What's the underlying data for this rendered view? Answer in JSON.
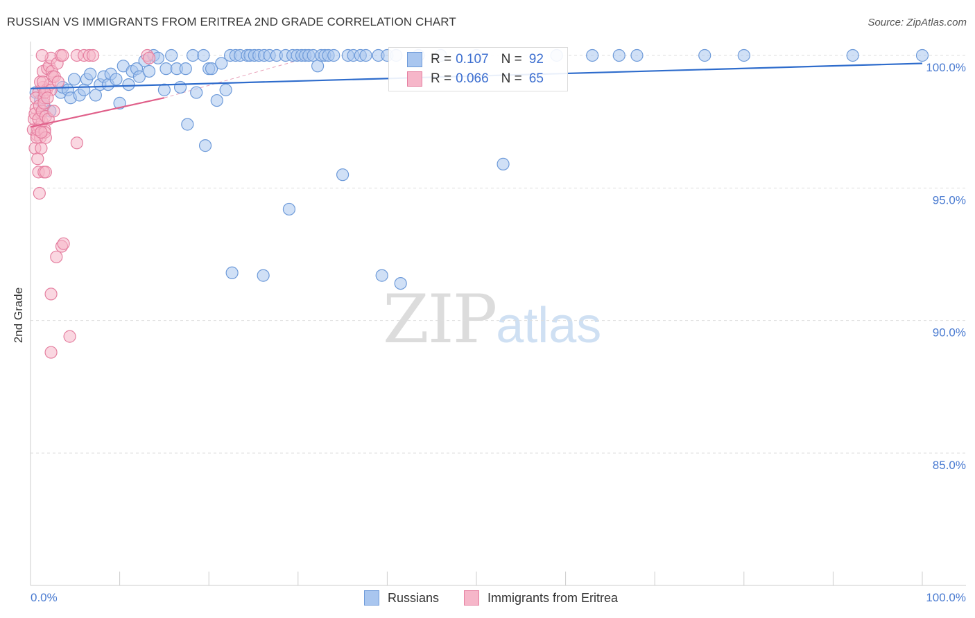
{
  "title": "RUSSIAN VS IMMIGRANTS FROM ERITREA 2ND GRADE CORRELATION CHART",
  "source": "Source: ZipAtlas.com",
  "watermark": {
    "zip": "ZIP",
    "atlas": "atlas"
  },
  "colors": {
    "russians_fill": "#a9c6ef",
    "russians_stroke": "#6d9ad9",
    "russians_line": "#2e6ccc",
    "eritrea_fill": "#f6b6c9",
    "eritrea_stroke": "#e57fa0",
    "eritrea_line": "#e0608a",
    "axis_text": "#4a7bd1",
    "grid": "#dddddd"
  },
  "legend": {
    "russians": {
      "r_label": "R =",
      "r_value": "0.107",
      "n_label": "N =",
      "n_value": "92"
    },
    "eritrea": {
      "r_label": "R =",
      "r_value": "0.066",
      "n_label": "N =",
      "n_value": "65"
    }
  },
  "chart_data": {
    "type": "scatter",
    "title": "RUSSIAN VS IMMIGRANTS FROM ERITREA 2ND GRADE CORRELATION CHART",
    "xlabel": "",
    "ylabel": "2nd Grade",
    "xlim": [
      0,
      100
    ],
    "ylim": [
      80.4,
      100.7
    ],
    "x_tick_labels": [
      "0.0%",
      "100.0%"
    ],
    "y_ticks": [
      100,
      95,
      90,
      85
    ],
    "y_tick_labels": [
      "100.0%",
      "95.0%",
      "90.0%",
      "85.0%"
    ],
    "grid": "horizontal dashed",
    "legend_position": "top-center",
    "series": [
      {
        "name": "Russians",
        "trend": [
          [
            0,
            98.75
          ],
          [
            100,
            99.7
          ]
        ],
        "points": [
          [
            0.6,
            98.6
          ],
          [
            1.1,
            98.3
          ],
          [
            1.5,
            98.1
          ],
          [
            2.2,
            97.9
          ],
          [
            3.4,
            98.6
          ],
          [
            3.6,
            98.8
          ],
          [
            4.2,
            98.7
          ],
          [
            4.5,
            98.4
          ],
          [
            4.9,
            99.1
          ],
          [
            5.5,
            98.5
          ],
          [
            6.0,
            98.7
          ],
          [
            6.3,
            99.1
          ],
          [
            6.7,
            99.3
          ],
          [
            7.3,
            98.5
          ],
          [
            7.8,
            98.9
          ],
          [
            8.2,
            99.2
          ],
          [
            8.7,
            98.9
          ],
          [
            9.0,
            99.3
          ],
          [
            9.6,
            99.1
          ],
          [
            10.0,
            98.2
          ],
          [
            10.4,
            99.6
          ],
          [
            11.0,
            98.9
          ],
          [
            11.4,
            99.4
          ],
          [
            11.9,
            99.5
          ],
          [
            12.2,
            99.2
          ],
          [
            12.8,
            99.8
          ],
          [
            13.3,
            99.4
          ],
          [
            13.8,
            100.0
          ],
          [
            14.3,
            99.9
          ],
          [
            15.0,
            98.7
          ],
          [
            15.2,
            99.5
          ],
          [
            15.8,
            100.0
          ],
          [
            16.4,
            99.5
          ],
          [
            16.8,
            98.8
          ],
          [
            17.4,
            99.5
          ],
          [
            17.6,
            97.4
          ],
          [
            18.2,
            100.0
          ],
          [
            18.6,
            98.6
          ],
          [
            19.4,
            100.0
          ],
          [
            19.6,
            96.6
          ],
          [
            20.0,
            99.5
          ],
          [
            20.3,
            99.5
          ],
          [
            20.9,
            98.3
          ],
          [
            21.4,
            99.7
          ],
          [
            21.9,
            98.7
          ],
          [
            22.4,
            100.0
          ],
          [
            22.6,
            91.8
          ],
          [
            23.0,
            100.0
          ],
          [
            23.5,
            100.0
          ],
          [
            24.3,
            100.0
          ],
          [
            24.6,
            100.0
          ],
          [
            25.1,
            100.0
          ],
          [
            25.6,
            100.0
          ],
          [
            26.2,
            100.0
          ],
          [
            26.8,
            100.0
          ],
          [
            26.1,
            91.7
          ],
          [
            27.6,
            100.0
          ],
          [
            28.6,
            100.0
          ],
          [
            29.0,
            94.2
          ],
          [
            29.4,
            100.0
          ],
          [
            29.9,
            100.0
          ],
          [
            30.4,
            100.0
          ],
          [
            30.8,
            100.0
          ],
          [
            31.2,
            100.0
          ],
          [
            31.7,
            100.0
          ],
          [
            32.2,
            99.6
          ],
          [
            32.6,
            100.0
          ],
          [
            33.0,
            100.0
          ],
          [
            33.4,
            100.0
          ],
          [
            34.0,
            100.0
          ],
          [
            35.0,
            95.5
          ],
          [
            35.6,
            100.0
          ],
          [
            36.2,
            100.0
          ],
          [
            37.0,
            100.0
          ],
          [
            37.6,
            100.0
          ],
          [
            39.0,
            100.0
          ],
          [
            39.4,
            91.7
          ],
          [
            40.0,
            100.0
          ],
          [
            41.0,
            100.0
          ],
          [
            41.5,
            91.4
          ],
          [
            43.5,
            100.0
          ],
          [
            46.0,
            100.0
          ],
          [
            50.0,
            100.0
          ],
          [
            53.0,
            95.9
          ],
          [
            59.0,
            100.0
          ],
          [
            63.0,
            100.0
          ],
          [
            66.0,
            100.0
          ],
          [
            68.0,
            100.0
          ],
          [
            75.6,
            100.0
          ],
          [
            80.0,
            100.0
          ],
          [
            92.2,
            100.0
          ],
          [
            100.0,
            100.0
          ]
        ]
      },
      {
        "name": "Immigrants from Eritrea",
        "trend": [
          [
            0,
            97.3
          ],
          [
            15,
            98.4
          ]
        ],
        "points": [
          [
            0.3,
            97.2
          ],
          [
            0.4,
            97.6
          ],
          [
            0.5,
            96.5
          ],
          [
            0.6,
            98.0
          ],
          [
            0.7,
            97.0
          ],
          [
            0.8,
            96.1
          ],
          [
            0.9,
            98.6
          ],
          [
            1.0,
            97.3
          ],
          [
            1.1,
            96.9
          ],
          [
            1.2,
            97.8
          ],
          [
            1.3,
            97.5
          ],
          [
            1.4,
            98.8
          ],
          [
            0.5,
            97.8
          ],
          [
            0.6,
            98.4
          ],
          [
            0.7,
            96.9
          ],
          [
            0.8,
            97.2
          ],
          [
            0.9,
            97.6
          ],
          [
            1.0,
            98.1
          ],
          [
            1.1,
            99.0
          ],
          [
            1.2,
            96.5
          ],
          [
            1.3,
            97.9
          ],
          [
            1.4,
            99.4
          ],
          [
            1.5,
            98.4
          ],
          [
            1.6,
            97.2
          ],
          [
            1.7,
            97.7
          ],
          [
            1.8,
            98.7
          ],
          [
            1.9,
            99.5
          ],
          [
            2.0,
            97.6
          ],
          [
            2.1,
            99.6
          ],
          [
            2.2,
            98.9
          ],
          [
            2.3,
            99.9
          ],
          [
            2.4,
            99.4
          ],
          [
            2.5,
            99.2
          ],
          [
            1.3,
            100.0
          ],
          [
            1.4,
            99.0
          ],
          [
            1.5,
            98.2
          ],
          [
            1.6,
            97.1
          ],
          [
            1.7,
            96.9
          ],
          [
            0.9,
            95.6
          ],
          [
            1.0,
            94.8
          ],
          [
            1.5,
            95.6
          ],
          [
            1.7,
            95.6
          ],
          [
            2.3,
            98.7
          ],
          [
            2.7,
            99.2
          ],
          [
            3.0,
            99.7
          ],
          [
            3.1,
            99.0
          ],
          [
            3.4,
            100.0
          ],
          [
            3.6,
            100.0
          ],
          [
            5.2,
            100.0
          ],
          [
            6.0,
            100.0
          ],
          [
            6.6,
            100.0
          ],
          [
            7.0,
            100.0
          ],
          [
            13.1,
            100.0
          ],
          [
            13.3,
            99.9
          ],
          [
            5.2,
            96.7
          ],
          [
            3.5,
            92.8
          ],
          [
            3.7,
            92.9
          ],
          [
            2.9,
            92.4
          ],
          [
            2.3,
            91.0
          ],
          [
            4.4,
            89.4
          ],
          [
            2.3,
            88.8
          ],
          [
            1.6,
            98.6
          ],
          [
            1.9,
            98.4
          ],
          [
            2.6,
            97.9
          ],
          [
            1.2,
            97.1
          ]
        ]
      }
    ],
    "reference_line": {
      "style": "dashed",
      "from": [
        15,
        98.4
      ],
      "to": [
        32,
        100.0
      ]
    }
  },
  "bottom_legend": {
    "russians": "Russians",
    "eritrea": "Immigrants from Eritrea"
  }
}
